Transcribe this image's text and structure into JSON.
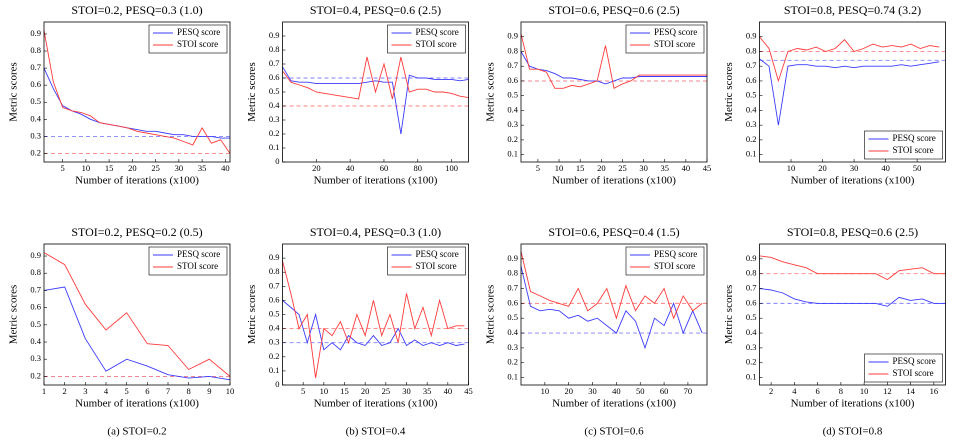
{
  "chart_data": [
    {
      "type": "line",
      "title": "STOI=0.2, PESQ=0.3 (1.0)",
      "xlabel": "Number of iterations (x100)",
      "ylabel": "Metric scores",
      "x": [
        1,
        3,
        5,
        7,
        9,
        11,
        13,
        15,
        17,
        19,
        21,
        23,
        25,
        27,
        29,
        31,
        33,
        35,
        37,
        39,
        41
      ],
      "xlim": [
        1,
        41
      ],
      "xticks": [
        5,
        10,
        15,
        20,
        25,
        30,
        35,
        40
      ],
      "ylim": [
        0.15,
        0.97
      ],
      "yticks": [
        0.2,
        0.3,
        0.4,
        0.5,
        0.6,
        0.7,
        0.8,
        0.9
      ],
      "legend": "upper right",
      "series": [
        {
          "name": "PESQ score",
          "color": "#3b3bff",
          "values": [
            0.7,
            0.58,
            0.48,
            0.45,
            0.43,
            0.4,
            0.38,
            0.37,
            0.36,
            0.35,
            0.34,
            0.33,
            0.33,
            0.32,
            0.31,
            0.31,
            0.3,
            0.3,
            0.3,
            0.29,
            0.29
          ]
        },
        {
          "name": "STOI score",
          "color": "#ff3b3b",
          "values": [
            0.92,
            0.62,
            0.47,
            0.45,
            0.44,
            0.42,
            0.38,
            0.37,
            0.36,
            0.35,
            0.33,
            0.32,
            0.31,
            0.3,
            0.29,
            0.27,
            0.25,
            0.35,
            0.26,
            0.28,
            0.2
          ]
        }
      ],
      "targets": [
        {
          "value": 0.3,
          "color": "#8080ff"
        },
        {
          "value": 0.2,
          "color": "#ff8080"
        }
      ]
    },
    {
      "type": "line",
      "title": "STOI=0.4, PESQ=0.6 (2.5)",
      "xlabel": "Number of iterations (x100)",
      "ylabel": "Metric scores",
      "x": [
        0,
        5,
        10,
        15,
        20,
        25,
        30,
        35,
        40,
        45,
        50,
        55,
        60,
        65,
        70,
        75,
        80,
        85,
        90,
        95,
        100,
        105,
        110
      ],
      "xlim": [
        0,
        110
      ],
      "xticks": [
        20,
        40,
        60,
        80,
        100
      ],
      "ylim": [
        0,
        1
      ],
      "yticks": [
        0,
        0.1,
        0.2,
        0.3,
        0.4,
        0.5,
        0.6,
        0.7,
        0.8,
        0.9
      ],
      "legend": "upper right",
      "series": [
        {
          "name": "PESQ score",
          "color": "#3b3bff",
          "values": [
            0.68,
            0.58,
            0.57,
            0.57,
            0.56,
            0.56,
            0.56,
            0.56,
            0.56,
            0.56,
            0.57,
            0.58,
            0.57,
            0.57,
            0.2,
            0.62,
            0.6,
            0.6,
            0.59,
            0.59,
            0.59,
            0.58,
            0.59
          ]
        },
        {
          "name": "STOI score",
          "color": "#ff3b3b",
          "values": [
            0.65,
            0.57,
            0.55,
            0.53,
            0.5,
            0.49,
            0.48,
            0.47,
            0.46,
            0.45,
            0.75,
            0.5,
            0.7,
            0.45,
            0.75,
            0.5,
            0.52,
            0.52,
            0.5,
            0.5,
            0.49,
            0.47,
            0.46
          ]
        }
      ],
      "targets": [
        {
          "value": 0.6,
          "color": "#8080ff"
        },
        {
          "value": 0.4,
          "color": "#ff8080"
        }
      ]
    },
    {
      "type": "line",
      "title": "STOI=0.6, PESQ=0.6 (2.5)",
      "xlabel": "Number of iterations (x100)",
      "ylabel": "Metric scores",
      "x": [
        1,
        3,
        5,
        7,
        9,
        11,
        13,
        15,
        17,
        19,
        21,
        23,
        25,
        27,
        29,
        31,
        33,
        35,
        37,
        39,
        41,
        43,
        45
      ],
      "xlim": [
        1,
        45
      ],
      "xticks": [
        5,
        10,
        15,
        20,
        25,
        30,
        35,
        40,
        45
      ],
      "ylim": [
        0.05,
        1
      ],
      "yticks": [
        0.1,
        0.2,
        0.3,
        0.4,
        0.5,
        0.6,
        0.7,
        0.8,
        0.9
      ],
      "legend": "upper right",
      "series": [
        {
          "name": "PESQ score",
          "color": "#3b3bff",
          "values": [
            0.8,
            0.7,
            0.68,
            0.67,
            0.65,
            0.62,
            0.62,
            0.61,
            0.6,
            0.6,
            0.58,
            0.6,
            0.62,
            0.62,
            0.63,
            0.63,
            0.63,
            0.63,
            0.63,
            0.63,
            0.63,
            0.63,
            0.63
          ]
        },
        {
          "name": "STOI score",
          "color": "#ff3b3b",
          "values": [
            0.92,
            0.68,
            0.68,
            0.66,
            0.55,
            0.55,
            0.57,
            0.56,
            0.58,
            0.6,
            0.84,
            0.55,
            0.58,
            0.6,
            0.64,
            0.64,
            0.64,
            0.64,
            0.64,
            0.64,
            0.64,
            0.64,
            0.64
          ]
        }
      ],
      "targets": [
        {
          "value": 0.6,
          "color": "#8080ff"
        },
        {
          "value": 0.6,
          "color": "#ff8080"
        }
      ]
    },
    {
      "type": "line",
      "title": "STOI=0.8, PESQ=0.74 (3.2)",
      "xlabel": "Number of iterations (x100)",
      "ylabel": "Metric scores",
      "x": [
        0,
        3,
        6,
        9,
        12,
        15,
        18,
        21,
        24,
        27,
        30,
        33,
        36,
        39,
        42,
        45,
        48,
        51,
        54,
        57
      ],
      "xlim": [
        0,
        59
      ],
      "xticks": [
        10,
        20,
        30,
        40,
        50
      ],
      "ylim": [
        0.05,
        1
      ],
      "yticks": [
        0.1,
        0.2,
        0.3,
        0.4,
        0.5,
        0.6,
        0.7,
        0.8,
        0.9
      ],
      "legend": "lower right",
      "series": [
        {
          "name": "PESQ score",
          "color": "#3b3bff",
          "values": [
            0.75,
            0.7,
            0.3,
            0.7,
            0.71,
            0.71,
            0.7,
            0.7,
            0.69,
            0.7,
            0.69,
            0.7,
            0.7,
            0.7,
            0.7,
            0.71,
            0.7,
            0.71,
            0.72,
            0.73
          ]
        },
        {
          "name": "STOI score",
          "color": "#ff3b3b",
          "values": [
            0.9,
            0.82,
            0.6,
            0.8,
            0.82,
            0.81,
            0.83,
            0.8,
            0.82,
            0.88,
            0.8,
            0.82,
            0.85,
            0.83,
            0.84,
            0.83,
            0.85,
            0.82,
            0.84,
            0.83
          ]
        }
      ],
      "targets": [
        {
          "value": 0.74,
          "color": "#8080ff"
        },
        {
          "value": 0.8,
          "color": "#ff8080"
        }
      ]
    },
    {
      "type": "line",
      "title": "STOI=0.2, PESQ=0.2 (0.5)",
      "xlabel": "Number of iterations (x100)",
      "ylabel": "Metric scores",
      "x": [
        1,
        2,
        3,
        4,
        5,
        6,
        7,
        8,
        9,
        10
      ],
      "xlim": [
        1,
        10
      ],
      "xticks": [
        1,
        2,
        3,
        4,
        5,
        6,
        7,
        8,
        9,
        10
      ],
      "ylim": [
        0.15,
        0.97
      ],
      "yticks": [
        0.2,
        0.3,
        0.4,
        0.5,
        0.6,
        0.7,
        0.8,
        0.9
      ],
      "legend": "upper right",
      "series": [
        {
          "name": "PESQ score",
          "color": "#3b3bff",
          "values": [
            0.7,
            0.72,
            0.42,
            0.23,
            0.3,
            0.26,
            0.21,
            0.19,
            0.2,
            0.18
          ]
        },
        {
          "name": "STOI score",
          "color": "#ff3b3b",
          "values": [
            0.92,
            0.85,
            0.62,
            0.47,
            0.57,
            0.39,
            0.38,
            0.24,
            0.3,
            0.2
          ]
        }
      ],
      "targets": [
        {
          "value": 0.2,
          "color": "#8080ff"
        },
        {
          "value": 0.2,
          "color": "#ff8080"
        }
      ]
    },
    {
      "type": "line",
      "title": "STOI=0.4, PESQ=0.3 (1.0)",
      "xlabel": "Number of iterations (x100)",
      "ylabel": "Metric scores",
      "x": [
        0,
        2,
        4,
        6,
        8,
        10,
        12,
        14,
        16,
        18,
        20,
        22,
        24,
        26,
        28,
        30,
        32,
        34,
        36,
        38,
        40,
        42,
        44
      ],
      "xlim": [
        0,
        45
      ],
      "xticks": [
        5,
        10,
        15,
        20,
        25,
        30,
        35,
        40,
        45
      ],
      "ylim": [
        0,
        1
      ],
      "yticks": [
        0,
        0.1,
        0.2,
        0.3,
        0.4,
        0.5,
        0.6,
        0.7,
        0.8,
        0.9
      ],
      "legend": "upper right",
      "series": [
        {
          "name": "PESQ score",
          "color": "#3b3bff",
          "values": [
            0.6,
            0.55,
            0.5,
            0.3,
            0.5,
            0.25,
            0.3,
            0.25,
            0.35,
            0.3,
            0.28,
            0.35,
            0.28,
            0.3,
            0.4,
            0.28,
            0.32,
            0.28,
            0.3,
            0.28,
            0.3,
            0.28,
            0.29
          ]
        },
        {
          "name": "STOI score",
          "color": "#ff3b3b",
          "values": [
            0.88,
            0.65,
            0.4,
            0.5,
            0.05,
            0.4,
            0.35,
            0.45,
            0.3,
            0.5,
            0.35,
            0.6,
            0.35,
            0.5,
            0.3,
            0.65,
            0.4,
            0.55,
            0.35,
            0.6,
            0.4,
            0.42,
            0.42
          ]
        }
      ],
      "targets": [
        {
          "value": 0.3,
          "color": "#8080ff"
        },
        {
          "value": 0.4,
          "color": "#ff8080"
        }
      ]
    },
    {
      "type": "line",
      "title": "STOI=0.6, PESQ=0.4 (1.5)",
      "xlabel": "Number of iterations (x100)",
      "ylabel": "Metric scores",
      "x": [
        0,
        4,
        8,
        12,
        16,
        20,
        24,
        28,
        32,
        36,
        40,
        44,
        48,
        52,
        56,
        60,
        64,
        68,
        72,
        76
      ],
      "xlim": [
        0,
        78
      ],
      "xticks": [
        10,
        20,
        30,
        40,
        50,
        60,
        70
      ],
      "ylim": [
        0.05,
        1
      ],
      "yticks": [
        0.1,
        0.2,
        0.3,
        0.4,
        0.5,
        0.6,
        0.7,
        0.8,
        0.9
      ],
      "legend": "upper right",
      "series": [
        {
          "name": "PESQ score",
          "color": "#3b3bff",
          "values": [
            0.85,
            0.58,
            0.55,
            0.56,
            0.55,
            0.5,
            0.52,
            0.48,
            0.5,
            0.45,
            0.4,
            0.55,
            0.48,
            0.3,
            0.5,
            0.45,
            0.6,
            0.4,
            0.55,
            0.4
          ]
        },
        {
          "name": "STOI score",
          "color": "#ff3b3b",
          "values": [
            0.95,
            0.68,
            0.65,
            0.62,
            0.6,
            0.58,
            0.7,
            0.55,
            0.6,
            0.7,
            0.5,
            0.72,
            0.55,
            0.65,
            0.6,
            0.7,
            0.5,
            0.65,
            0.55,
            0.6
          ]
        }
      ],
      "targets": [
        {
          "value": 0.4,
          "color": "#8080ff"
        },
        {
          "value": 0.6,
          "color": "#ff8080"
        }
      ]
    },
    {
      "type": "line",
      "title": "STOI=0.8, PESQ=0.6 (2.5)",
      "xlabel": "Number of iterations (x100)",
      "ylabel": "Metric scores",
      "x": [
        1,
        2,
        3,
        4,
        5,
        6,
        7,
        8,
        9,
        10,
        11,
        12,
        13,
        14,
        15,
        16,
        17
      ],
      "xlim": [
        1,
        17
      ],
      "xticks": [
        2,
        4,
        6,
        8,
        10,
        12,
        14,
        16
      ],
      "ylim": [
        0.05,
        1
      ],
      "yticks": [
        0.1,
        0.2,
        0.3,
        0.4,
        0.5,
        0.6,
        0.7,
        0.8,
        0.9
      ],
      "legend": "lower right",
      "series": [
        {
          "name": "PESQ score",
          "color": "#3b3bff",
          "values": [
            0.7,
            0.69,
            0.67,
            0.63,
            0.61,
            0.6,
            0.6,
            0.6,
            0.6,
            0.6,
            0.6,
            0.58,
            0.64,
            0.62,
            0.63,
            0.6,
            0.6
          ]
        },
        {
          "name": "STOI score",
          "color": "#ff3b3b",
          "values": [
            0.92,
            0.91,
            0.88,
            0.86,
            0.84,
            0.8,
            0.8,
            0.8,
            0.8,
            0.8,
            0.8,
            0.76,
            0.82,
            0.83,
            0.84,
            0.8,
            0.8
          ]
        }
      ],
      "targets": [
        {
          "value": 0.6,
          "color": "#8080ff"
        },
        {
          "value": 0.8,
          "color": "#ff8080"
        }
      ]
    }
  ],
  "captions": [
    "(a) STOI=0.2",
    "(b) STOI=0.4",
    "(c) STOI=0.6",
    "(d) STOI=0.8"
  ]
}
